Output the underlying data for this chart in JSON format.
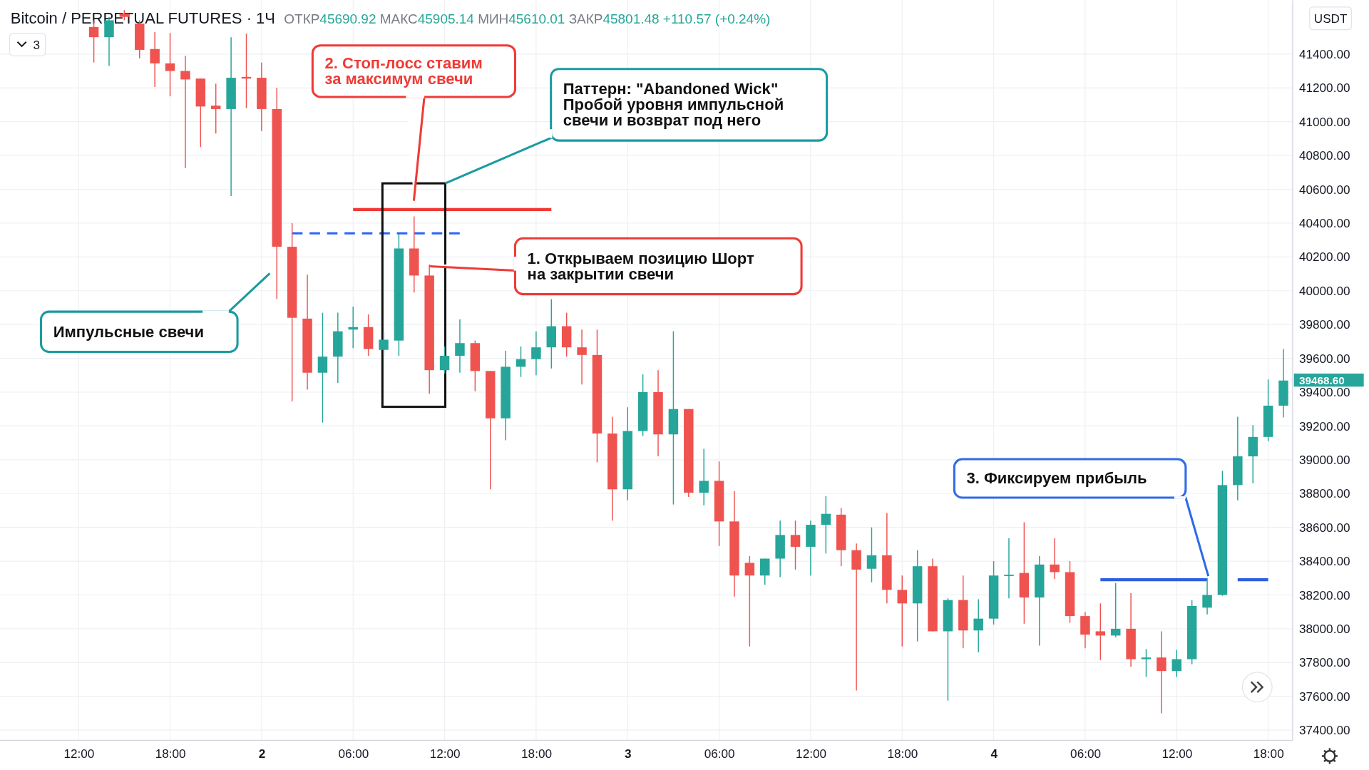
{
  "chart_data": {
    "type": "candlestick",
    "title": "Bitcoin / PERPETUAL FUTURES · 1Ч",
    "subtitle": "ОТКР45690.92 МАКС45905.14 МИН45610.01 ЗАКР45801.48 +110.57 (+0.24%)",
    "ylabel": "USDT",
    "categories": [
      "12:00",
      null,
      null,
      null,
      null,
      null,
      "18:00",
      null,
      null,
      null,
      null,
      null,
      "2",
      null,
      null,
      null,
      null,
      null,
      "06:00",
      null,
      null,
      null,
      null,
      null,
      "12:00",
      null,
      null,
      null,
      null,
      null,
      "18:00",
      null,
      null,
      null,
      null,
      null,
      "3",
      null,
      null,
      null,
      null,
      null,
      "06:00",
      null,
      null,
      null,
      null,
      null,
      "12:00",
      null,
      null,
      null,
      null,
      null,
      "18:00",
      null,
      null,
      null,
      null,
      null,
      "4",
      null,
      null,
      null,
      null,
      null,
      "06:00",
      null,
      null,
      null,
      null,
      null,
      "12:00",
      null,
      null,
      null,
      null,
      null,
      "18:00",
      null
    ],
    "ohlc": [
      null,
      [
        41560,
        41600,
        41350,
        41500
      ],
      [
        41500,
        41620,
        41330,
        41600
      ],
      [
        41640,
        41660,
        41600,
        41620
      ],
      [
        41580,
        41600,
        41375,
        41425
      ],
      [
        41430,
        41530,
        41205,
        41345
      ],
      [
        41345,
        41525,
        41150,
        41300
      ],
      [
        41300,
        41390,
        40725,
        41250
      ],
      [
        41255,
        41255,
        40850,
        41090
      ],
      [
        41095,
        41225,
        40930,
        41075
      ],
      [
        41075,
        41500,
        40560,
        41260
      ],
      [
        41265,
        41520,
        41080,
        41255
      ],
      [
        41260,
        41350,
        40945,
        41075
      ],
      [
        41075,
        41200,
        39950,
        40260
      ],
      [
        40260,
        40400,
        39345,
        39840
      ],
      [
        39835,
        40095,
        39415,
        39515
      ],
      [
        39515,
        39870,
        39220,
        39610
      ],
      [
        39610,
        39870,
        39455,
        39760
      ],
      [
        39770,
        39905,
        39660,
        39785
      ],
      [
        39785,
        39860,
        39615,
        39655
      ],
      [
        39650,
        39755,
        39615,
        39710
      ],
      [
        39705,
        40335,
        39615,
        40250
      ],
      [
        40250,
        40440,
        39990,
        40090
      ],
      [
        40090,
        40155,
        39390,
        39530
      ],
      [
        39530,
        39670,
        39510,
        39615
      ],
      [
        39615,
        39830,
        39515,
        39690
      ],
      [
        39690,
        39705,
        39405,
        39525
      ],
      [
        39525,
        39525,
        38825,
        39245
      ],
      [
        39245,
        39645,
        39115,
        39550
      ],
      [
        39550,
        39670,
        39490,
        39595
      ],
      [
        39595,
        39760,
        39500,
        39665
      ],
      [
        39665,
        39950,
        39540,
        39790
      ],
      [
        39790,
        39870,
        39610,
        39665
      ],
      [
        39665,
        39770,
        39445,
        39620
      ],
      [
        39620,
        39770,
        38985,
        39155
      ],
      [
        39155,
        39255,
        38640,
        38825
      ],
      [
        38825,
        39310,
        38760,
        39170
      ],
      [
        39170,
        39505,
        39140,
        39400
      ],
      [
        39400,
        39530,
        39020,
        39150
      ],
      [
        39150,
        39760,
        38735,
        39300
      ],
      [
        39300,
        39300,
        38780,
        38805
      ],
      [
        38805,
        39065,
        38730,
        38875
      ],
      [
        38875,
        38990,
        38490,
        38635
      ],
      [
        38635,
        38815,
        38190,
        38315
      ],
      [
        38390,
        38430,
        37895,
        38315
      ],
      [
        38315,
        38415,
        38260,
        38415
      ],
      [
        38415,
        38640,
        38305,
        38555
      ],
      [
        38555,
        38640,
        38350,
        38485
      ],
      [
        38485,
        38640,
        38315,
        38615
      ],
      [
        38615,
        38785,
        38445,
        38680
      ],
      [
        38675,
        38715,
        38370,
        38465
      ],
      [
        38465,
        38505,
        37635,
        38350
      ],
      [
        38355,
        38600,
        38275,
        38435
      ],
      [
        38435,
        38685,
        38150,
        38230
      ],
      [
        38230,
        38315,
        37895,
        38150
      ],
      [
        38150,
        38465,
        37925,
        38370
      ],
      [
        38370,
        38415,
        37985,
        37985
      ],
      [
        37985,
        38180,
        37575,
        38170
      ],
      [
        38170,
        38315,
        37885,
        37990
      ],
      [
        37990,
        38175,
        37860,
        38060
      ],
      [
        38060,
        38400,
        38025,
        38315
      ],
      [
        38315,
        38535,
        38180,
        38320
      ],
      [
        38330,
        38630,
        38030,
        38185
      ],
      [
        38185,
        38430,
        37900,
        38380
      ],
      [
        38380,
        38535,
        38295,
        38335
      ],
      [
        38335,
        38400,
        38035,
        38075
      ],
      [
        38075,
        38100,
        37885,
        37965
      ],
      [
        37985,
        38150,
        37815,
        37960
      ],
      [
        37960,
        38270,
        37950,
        38000
      ],
      [
        38000,
        38210,
        37775,
        37820
      ],
      [
        37820,
        37880,
        37715,
        37830
      ],
      [
        37830,
        37985,
        37500,
        37750
      ],
      [
        37750,
        37875,
        37715,
        37820
      ],
      [
        37820,
        38170,
        37790,
        38135
      ],
      [
        38125,
        38300,
        38085,
        38200
      ],
      [
        38200,
        38935,
        38195,
        38850
      ],
      [
        38850,
        39255,
        38760,
        39020
      ],
      [
        39020,
        39205,
        38860,
        39135
      ],
      [
        39135,
        39475,
        39110,
        39320
      ],
      [
        39320,
        39655,
        39250,
        39468.6
      ]
    ],
    "colors": [
      null,
      "#ef5350",
      "#26a69a",
      "#ef5350",
      "#ef5350",
      "#ef5350",
      "#ef5350",
      "#ef5350",
      "#ef5350",
      "#ef5350",
      "#26a69a",
      "#ef5350",
      "#ef5350",
      "#ef5350",
      "#ef5350",
      "#ef5350",
      "#26a69a",
      "#26a69a",
      "#26a69a",
      "#ef5350",
      "#26a69a",
      "#26a69a",
      "#ef5350",
      "#ef5350",
      "#26a69a",
      "#26a69a",
      "#ef5350",
      "#ef5350",
      "#26a69a",
      "#26a69a",
      "#26a69a",
      "#26a69a",
      "#ef5350",
      "#ef5350",
      "#ef5350",
      "#ef5350",
      "#26a69a",
      "#26a69a",
      "#ef5350",
      "#26a69a",
      "#ef5350",
      "#26a69a",
      "#ef5350",
      "#ef5350",
      "#ef5350",
      "#26a69a",
      "#26a69a",
      "#ef5350",
      "#26a69a",
      "#26a69a",
      "#ef5350",
      "#ef5350",
      "#26a69a",
      "#ef5350",
      "#ef5350",
      "#26a69a",
      "#ef5350",
      "#26a69a",
      "#ef5350",
      "#26a69a",
      "#26a69a",
      "#26a69a",
      "#ef5350",
      "#26a69a",
      "#ef5350",
      "#ef5350",
      "#ef5350",
      "#ef5350",
      "#26a69a",
      "#ef5350",
      "#26a69a",
      "#ef5350",
      "#26a69a",
      "#26a69a",
      "#26a69a",
      "#26a69a",
      "#26a69a",
      "#26a69a",
      "#26a69a",
      "#26a69a"
    ],
    "series": [
      {
        "type": "line",
        "values": [
          null,
          null,
          null,
          null,
          null,
          null,
          null,
          null,
          null,
          null,
          null,
          null,
          null,
          null,
          null,
          null,
          null,
          null,
          40480,
          40480,
          40480,
          40480,
          40480,
          40480,
          40480,
          40480,
          40480,
          40480,
          40480,
          40480,
          40480,
          40480,
          null,
          null,
          null,
          null,
          null,
          null,
          null,
          null,
          null,
          null,
          null,
          null,
          null,
          null,
          null,
          null,
          null,
          null,
          null,
          null,
          null,
          null,
          null,
          null,
          null,
          null,
          null,
          null,
          null,
          null,
          null,
          null,
          null,
          null,
          null,
          null,
          null,
          null,
          null,
          null,
          null,
          null,
          null,
          null,
          null,
          null,
          null,
          null
        ],
        "color": "#ef3b36",
        "line_style": "solid"
      },
      {
        "type": "line",
        "values": [
          null,
          null,
          null,
          null,
          null,
          null,
          null,
          null,
          null,
          null,
          null,
          null,
          null,
          null,
          40340,
          40340,
          40340,
          40340,
          40340,
          40340,
          40340,
          40340,
          40340,
          40340,
          40340,
          40340,
          null,
          null,
          null,
          null,
          null,
          null,
          null,
          null,
          null,
          null,
          null,
          null,
          null,
          null,
          null,
          null,
          null,
          null,
          null,
          null,
          null,
          null,
          null,
          null,
          null,
          null,
          null,
          null,
          null,
          null,
          null,
          null,
          null,
          null,
          null,
          null,
          null,
          null,
          null,
          null,
          null,
          null,
          null,
          null,
          null,
          null,
          null,
          null,
          null,
          null,
          null,
          null,
          null,
          null
        ],
        "color": "#2962ff",
        "line_style": "dashed"
      },
      {
        "type": "line",
        "values": [
          null,
          null,
          null,
          null,
          null,
          null,
          null,
          null,
          null,
          null,
          null,
          null,
          null,
          null,
          null,
          null,
          null,
          null,
          null,
          null,
          null,
          null,
          null,
          null,
          null,
          null,
          null,
          null,
          null,
          null,
          null,
          null,
          null,
          null,
          null,
          null,
          null,
          null,
          null,
          null,
          null,
          null,
          null,
          null,
          null,
          null,
          null,
          null,
          null,
          null,
          null,
          null,
          null,
          null,
          null,
          null,
          null,
          null,
          null,
          null,
          null,
          null,
          null,
          null,
          null,
          null,
          null,
          38290,
          38290,
          38290,
          38290,
          38290,
          38290,
          38290,
          38290,
          null,
          38290,
          38290,
          38290,
          null
        ],
        "color": "#2f5fe0",
        "line_style": "solid"
      }
    ],
    "ylim": [
      37340,
      41720
    ],
    "yticks": [
      {
        "value": 37400,
        "label": "37400.00"
      },
      {
        "value": 37600,
        "label": "37600.00"
      },
      {
        "value": 37800,
        "label": "37800.00"
      },
      {
        "value": 38000,
        "label": "38000.00"
      },
      {
        "value": 38200,
        "label": "38200.00"
      },
      {
        "value": 38400,
        "label": "38400.00"
      },
      {
        "value": 38600,
        "label": "38600.00"
      },
      {
        "value": 38800,
        "label": "38800.00"
      },
      {
        "value": 39000,
        "label": "39000.00"
      },
      {
        "value": 39200,
        "label": "39200.00"
      },
      {
        "value": 39400,
        "label": "39400.00"
      },
      {
        "value": 39600,
        "label": "39600.00"
      },
      {
        "value": 39800,
        "label": "39800.00"
      },
      {
        "value": 40000,
        "label": "40000.00"
      },
      {
        "value": 40200,
        "label": "40200.00"
      },
      {
        "value": 40400,
        "label": "40400.00"
      },
      {
        "value": 40600,
        "label": "40600.00"
      },
      {
        "value": 40800,
        "label": "40800.00"
      },
      {
        "value": 41000,
        "label": "41000.00"
      },
      {
        "value": 41200,
        "label": "41200.00"
      },
      {
        "value": 41400,
        "label": "41400.00"
      }
    ],
    "grid": true,
    "annotations": [
      "Импульсные свечи",
      "2. Стоп-лосс ставим\nза максимум свечи",
      "Паттерн: \"Abandoned Wick\"\nПробой уровня импульсной\nсвечи и возврат под него",
      "1. Открываем позицию Шорт\nна закрытии свечи",
      "3. Фиксируем прибыль",
      "3",
      "39468.60"
    ]
  }
}
